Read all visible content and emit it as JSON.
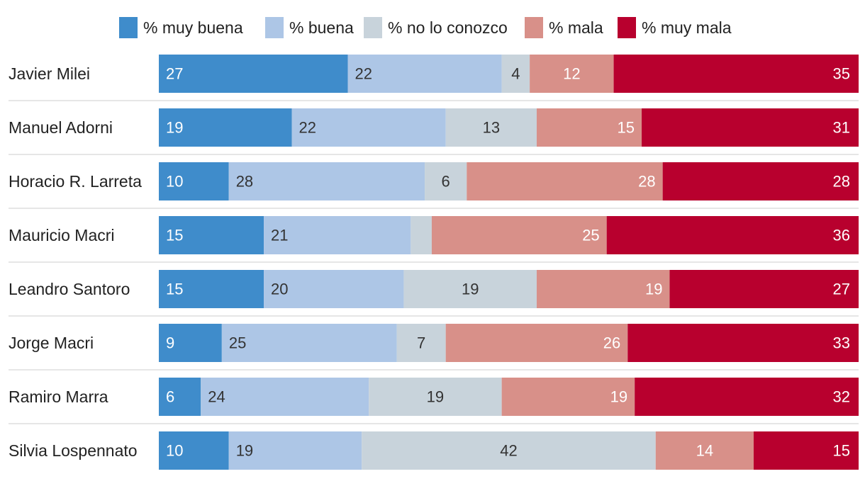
{
  "chart_data": {
    "type": "bar",
    "orientation": "horizontal",
    "stacked": true,
    "legend_position": "top",
    "title": "",
    "xlabel": "",
    "ylabel": "",
    "xlim": [
      0,
      100
    ],
    "categories": [
      "Javier Milei",
      "Manuel Adorni",
      "Horacio R. Larreta",
      "Mauricio Macri",
      "Leandro Santoro",
      "Jorge Macri",
      "Ramiro Marra",
      "Silvia Lospennato"
    ],
    "series": [
      {
        "name": "% muy buena",
        "color": "#3f8ccb",
        "label_color": "#ffffff",
        "values": [
          27,
          19,
          10,
          15,
          15,
          9,
          6,
          10
        ]
      },
      {
        "name": "% buena",
        "color": "#adc6e6",
        "label_color": "#333333",
        "values": [
          22,
          22,
          28,
          21,
          20,
          25,
          24,
          19
        ]
      },
      {
        "name": "% no lo conozco",
        "color": "#c8d3db",
        "label_color": "#333333",
        "values": [
          4,
          13,
          6,
          3,
          19,
          7,
          19,
          42
        ]
      },
      {
        "name": "% mala",
        "color": "#d89089",
        "label_color": "#ffffff",
        "values": [
          12,
          15,
          28,
          25,
          19,
          26,
          19,
          14
        ]
      },
      {
        "name": "% muy mala",
        "color": "#b8002e",
        "label_color": "#ffffff",
        "values": [
          35,
          31,
          28,
          36,
          27,
          33,
          32,
          15
        ]
      }
    ],
    "hidden_labels": [
      [
        3,
        2
      ]
    ]
  }
}
